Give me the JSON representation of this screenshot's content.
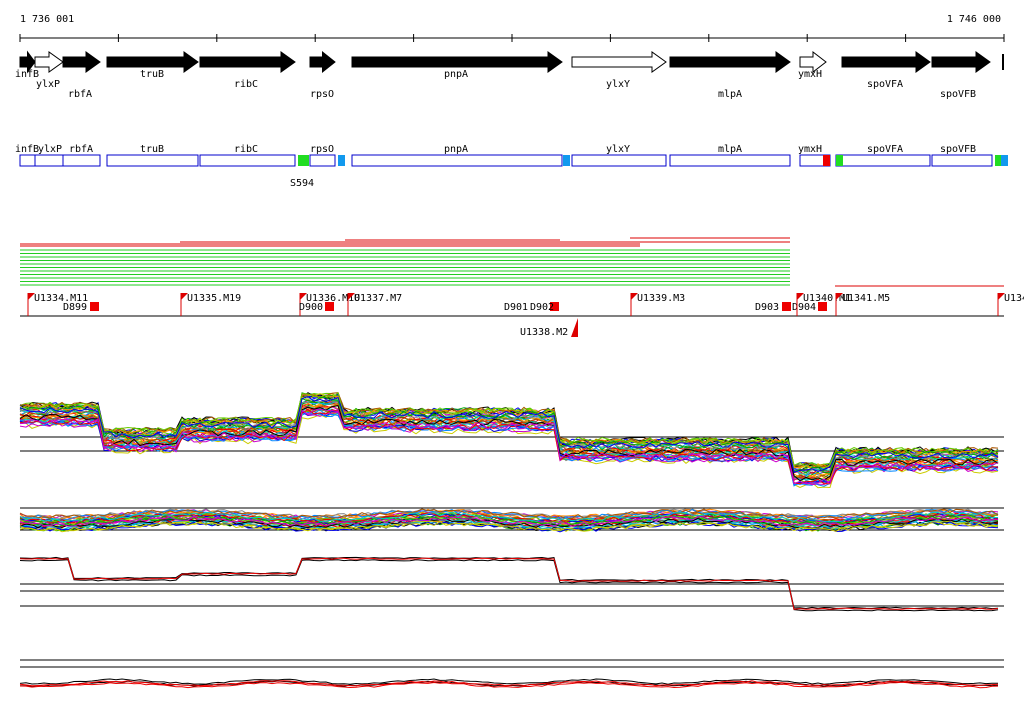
{
  "ruler": {
    "start": "1 736 001",
    "end": "1 746 000"
  },
  "gene_track": [
    "infB",
    "ylxP",
    "rbfA",
    "truB",
    "ribC",
    "rpsO",
    "pnpA",
    "ylxY",
    "mlpA",
    "ymxH",
    "spoVFA",
    "spoVFB"
  ],
  "box_track": {
    "genes": [
      "infB",
      "ylxP",
      "rbfA",
      "truB",
      "ribC",
      "rpsO",
      "pnpA",
      "ylxY",
      "mlpA",
      "ymxH",
      "spoVFA",
      "spoVFB"
    ],
    "marker": "S594"
  },
  "features": [
    "U1334.M11",
    "D899",
    "U1335.M19",
    "U1336.M10",
    "D900",
    "U1337.M7",
    "D901",
    "D902",
    "U1338.M2",
    "U1339.M3",
    "D903",
    "D904",
    "U1340.M1",
    "U1341.M5",
    "U134"
  ]
}
